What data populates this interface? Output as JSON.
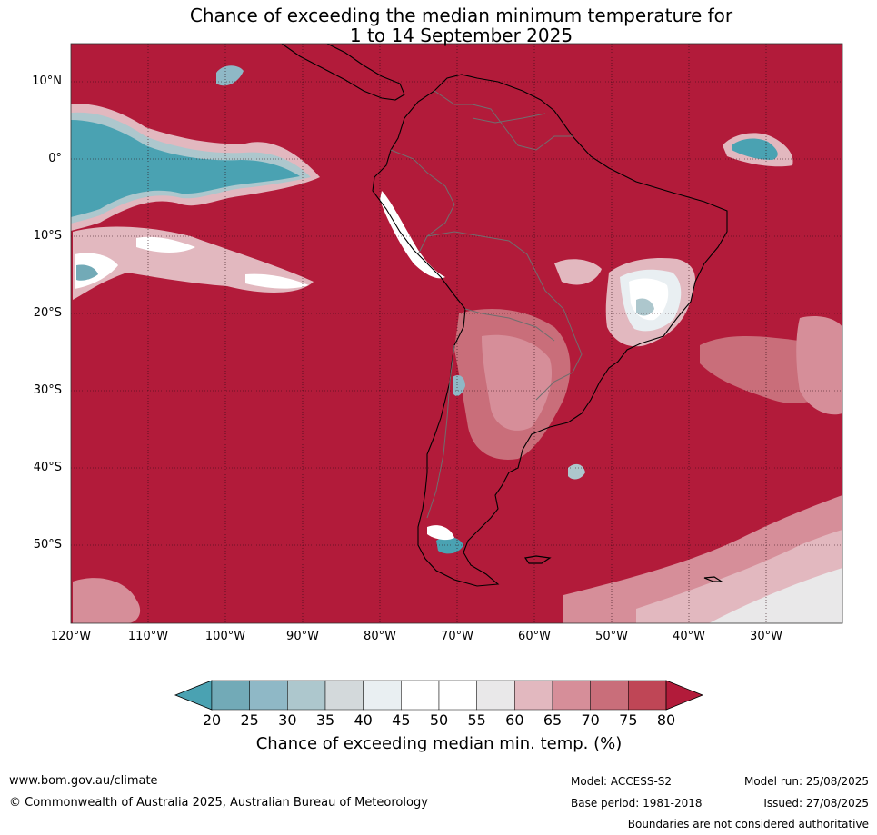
{
  "title_line1": "Chance of exceeding the median minimum temperature for",
  "title_line2": "1 to 14 September 2025",
  "lat_labels": [
    "10°N",
    "0°",
    "10°S",
    "20°S",
    "30°S",
    "40°S",
    "50°S"
  ],
  "lon_labels": [
    "120°W",
    "110°W",
    "100°W",
    "90°W",
    "80°W",
    "70°W",
    "60°W",
    "50°W",
    "40°W",
    "30°W"
  ],
  "colorbar": {
    "ticks": [
      "20",
      "25",
      "30",
      "35",
      "40",
      "45",
      "50",
      "55",
      "60",
      "65",
      "70",
      "75",
      "80"
    ],
    "colors": [
      "#4aa2b2",
      "#72aab7",
      "#8fb8c6",
      "#adc7cd",
      "#d3d9db",
      "#e9eff2",
      "#ffffff",
      "#ffffff",
      "#e9e8e9",
      "#e2b8bf",
      "#d68e99",
      "#c96e7a",
      "#bf4656",
      "#b21b3a"
    ],
    "label": "Chance of exceeding median min. temp. (%)"
  },
  "footer": {
    "website": "www.bom.gov.au/climate",
    "copyright": "© Commonwealth of Australia 2025, Australian Bureau of Meteorology",
    "model": "Model: ACCESS-S2",
    "base_period": "Base period: 1981-2018",
    "model_run": "Model run: 25/08/2025",
    "issued": "Issued: 27/08/2025",
    "disclaimer": "Boundaries are not considered authoritative"
  }
}
